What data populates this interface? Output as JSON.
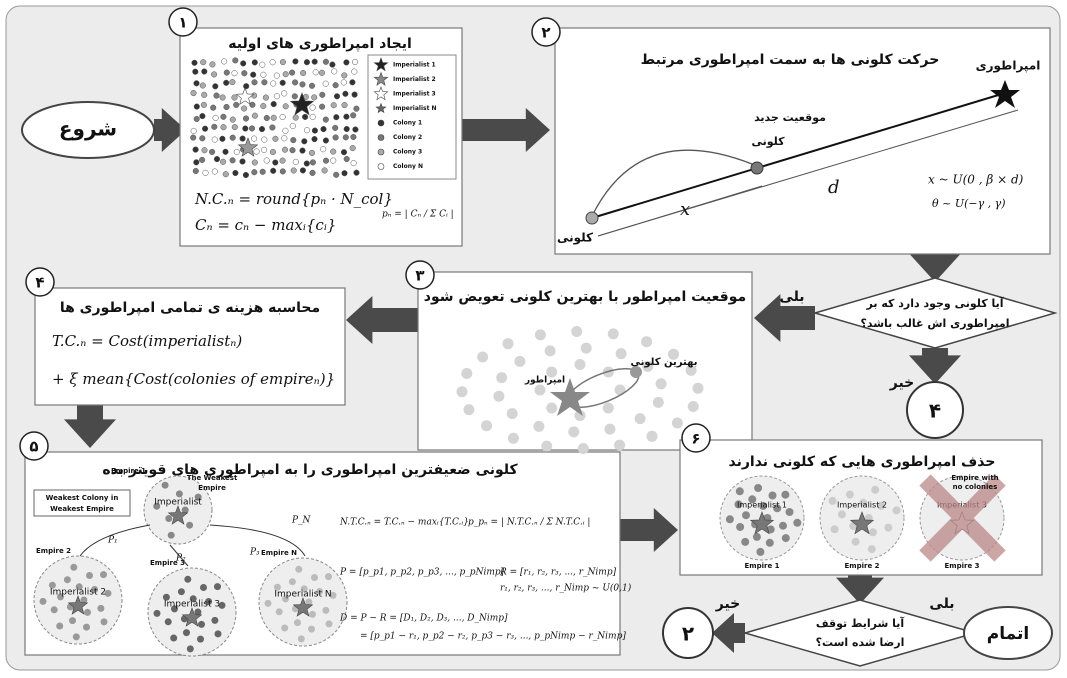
{
  "start": "شروع",
  "end": "اتمام",
  "step1": {
    "number": "۱",
    "title": "ایجاد امپراطوری های اولیه",
    "legend": [
      "Imperialist 1",
      "Imperialist 2",
      "Imperialist 3",
      "Imperialist N",
      "Colony 1",
      "Colony 2",
      "Colony 3",
      "Colony N"
    ],
    "formulas": [
      "N.C.ₙ = round{pₙ · N_col}",
      "Cₙ = cₙ − maxᵢ{cᵢ}",
      "pₙ = | Cₙ / Σ Cᵢ |"
    ]
  },
  "step2": {
    "number": "۲",
    "title": "حرکت کلونی ها به سمت امپراطوری مرتبط",
    "imperialist": "امپراطوری",
    "new_position": [
      "موقعیت جدید",
      "کلونی"
    ],
    "colony": "کلونی",
    "x_label": "x",
    "d_label": "d",
    "formulas": [
      "x ~ U(0 , β × d)",
      "θ ~ U(−γ , γ)"
    ]
  },
  "decision1": {
    "text": [
      "آیا کلونی وجود دارد که بر",
      "امپراطوری اش غالب باشد؟"
    ],
    "yes": "بلی",
    "no": "خیر",
    "goto": "۴"
  },
  "step3": {
    "number": "۳",
    "title": "موقعیت امپراطور با بهترین کلونی تعویض شود",
    "best_colony": "بهترین کلونی",
    "emperor": "امپراطور"
  },
  "step4": {
    "number": "۴",
    "title": "محاسبه هزینه ی تمامی امپراطوری ها",
    "formulas": [
      "T.C.ₙ = Cost(imperialistₙ)",
      "+ ξ mean{Cost(colonies of empireₙ)}"
    ]
  },
  "step5": {
    "number": "۵",
    "title": "کلونی ضعیفترین امپراطوری را به امپراطوری های قویتر بده",
    "weakest_note": [
      "Weakest Colony in",
      "Weakest Empire"
    ],
    "empires": [
      {
        "empire": "Empire 1",
        "imperialist": "Imperialist",
        "note": [
          "The Weakest",
          "Empire"
        ]
      },
      {
        "empire": "Empire 2",
        "imperialist": "Imperialist 2"
      },
      {
        "empire": "Empire 3",
        "imperialist": "Imperialist 3"
      },
      {
        "empire": "Empire N",
        "imperialist": "Imperialist N"
      }
    ],
    "probabilities": [
      "P₁",
      "P₂",
      "P₃",
      "P_N"
    ],
    "formulas": [
      "N.T.C.ₙ = T.C.ₙ − maxᵢ{T.C.ᵢ}",
      "p_pₙ = | N.T.C.ₙ / Σ N.T.C.ᵢ |",
      "P = [p_p1, p_p2, p_p3, ..., p_pNimp]",
      "R = [r₁, r₂, r₃, ..., r_Nimp]",
      "r₁, r₂, r₃, ..., r_Nimp ~ U(0,1)",
      "D = P − R = [D₁, D₂, D₃, ..., D_Nimp]",
      "= [p_p1 − r₁, p_p2 − r₂, p_p3 − r₃, ..., p_pNimp − r_Nimp]"
    ]
  },
  "step6": {
    "number": "۶",
    "title": "حذف امپراطوری هایی که کلونی ندارند",
    "imperialists": [
      "Imperialist 1",
      "Imperialist 2",
      "Imperialist 3"
    ],
    "empires": [
      "Empire 1",
      "Empire 2",
      "Empire 3"
    ],
    "no_colonies": [
      "Empire with",
      "no colonies"
    ]
  },
  "decision2": {
    "text": [
      "آیا شرایط توقف",
      "ارضا شده است؟"
    ],
    "yes": "بلی",
    "no": "خیر",
    "goto": "۲"
  }
}
